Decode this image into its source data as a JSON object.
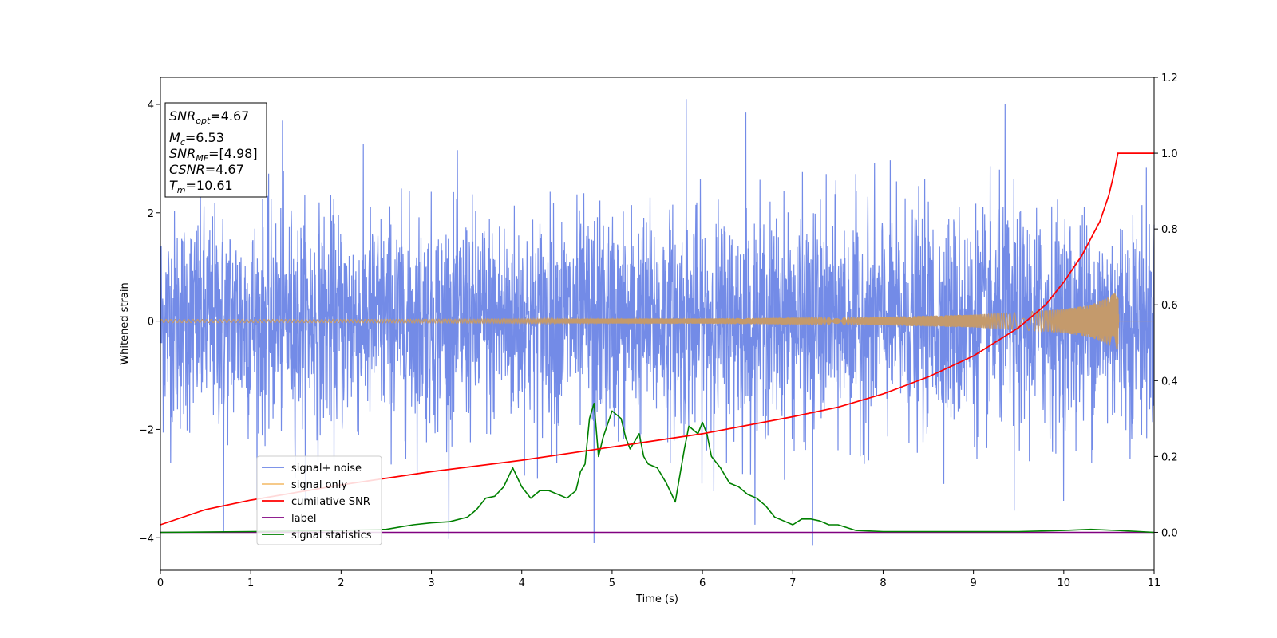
{
  "chart_data": {
    "type": "line",
    "xlabel": "Time (s)",
    "ylabel_left": "Whitened strain",
    "ylabel_right": "",
    "xlim": [
      0,
      11
    ],
    "ylim_left": [
      -4.6,
      4.5
    ],
    "ylim_right": [
      -0.1,
      1.2
    ],
    "x_ticks": [
      0,
      1,
      2,
      3,
      4,
      5,
      6,
      7,
      8,
      9,
      10,
      11
    ],
    "y_ticks_left": [
      -4,
      -2,
      0,
      2,
      4
    ],
    "y_ticks_left_labels": [
      "−4",
      "−2",
      "0",
      "2",
      "4"
    ],
    "y_ticks_right": [
      0.0,
      0.2,
      0.4,
      0.6,
      0.8,
      1.0,
      1.2
    ],
    "y_ticks_right_labels": [
      "0.0",
      "0.2",
      "0.4",
      "0.6",
      "0.8",
      "1.0",
      "1.2"
    ],
    "grid": false,
    "legend_position": "lower-left",
    "info_box": {
      "snr_opt_label": "SNR",
      "snr_opt_sub": "opt",
      "snr_opt_value": "=4.67",
      "mc_label": "M",
      "mc_sub": "c",
      "mc_value": "=6.53",
      "snr_mf_label": "SNR",
      "snr_mf_sub": "MF",
      "snr_mf_value": "=[4.98]",
      "csnr_label": "CSNR",
      "csnr_value": "=4.67",
      "tm_label": "T",
      "tm_sub": "m",
      "tm_value": "=10.61"
    },
    "series": [
      {
        "name": "signal+ noise",
        "axis": "left",
        "color": "#6b85e6",
        "description": "whitened noise samples, approx. Gaussian, std ~1, spikes up to ~4.1 and down to ~-4.2",
        "extremes": [
          {
            "x": 0.7,
            "y": -3.9
          },
          {
            "x": 1.35,
            "y": 3.7
          },
          {
            "x": 4.8,
            "y": -4.1
          },
          {
            "x": 5.82,
            "y": 4.1
          },
          {
            "x": 6.48,
            "y": 3.85
          },
          {
            "x": 7.22,
            "y": -4.15
          },
          {
            "x": 9.35,
            "y": 4.0
          },
          {
            "x": 9.45,
            "y": -3.5
          }
        ]
      },
      {
        "name": "signal only",
        "axis": "left",
        "color": "#f5c27a",
        "description": "chirp waveform with growing amplitude, ends at Tm=10.61",
        "envelope_x": [
          0,
          2,
          4,
          6,
          8,
          9,
          9.5,
          10,
          10.3,
          10.5,
          10.6,
          10.61,
          11
        ],
        "envelope_y": [
          0.03,
          0.03,
          0.04,
          0.05,
          0.08,
          0.12,
          0.16,
          0.22,
          0.3,
          0.45,
          0.55,
          0.0,
          0.0
        ]
      },
      {
        "name": "cumilative SNR",
        "axis": "right",
        "color": "#ff0000",
        "x": [
          0,
          0.5,
          1,
          2,
          3,
          4,
          5,
          6,
          7,
          7.5,
          8,
          8.5,
          9,
          9.5,
          9.8,
          10,
          10.2,
          10.4,
          10.5,
          10.55,
          10.6,
          10.61,
          11
        ],
        "y": [
          0.02,
          0.06,
          0.085,
          0.125,
          0.16,
          0.19,
          0.225,
          0.26,
          0.305,
          0.33,
          0.365,
          0.41,
          0.465,
          0.54,
          0.6,
          0.66,
          0.73,
          0.82,
          0.89,
          0.94,
          1.0,
          1.0,
          1.0
        ]
      },
      {
        "name": "label",
        "axis": "right",
        "color": "#800080",
        "x": [
          0,
          11
        ],
        "y": [
          0.0,
          0.0
        ]
      },
      {
        "name": "signal statistics",
        "axis": "right",
        "color": "#008000",
        "x": [
          0,
          1,
          2,
          2.5,
          2.8,
          3.0,
          3.2,
          3.4,
          3.5,
          3.6,
          3.7,
          3.8,
          3.9,
          4.0,
          4.1,
          4.2,
          4.3,
          4.4,
          4.5,
          4.6,
          4.65,
          4.7,
          4.75,
          4.8,
          4.85,
          4.9,
          5.0,
          5.1,
          5.15,
          5.2,
          5.3,
          5.35,
          5.4,
          5.5,
          5.6,
          5.7,
          5.8,
          5.85,
          5.9,
          5.95,
          6.0,
          6.05,
          6.1,
          6.2,
          6.3,
          6.4,
          6.5,
          6.6,
          6.7,
          6.8,
          6.9,
          7.0,
          7.1,
          7.2,
          7.3,
          7.4,
          7.5,
          7.7,
          8.0,
          9.0,
          9.5,
          10.0,
          10.3,
          10.6,
          11
        ],
        "y": [
          0.0,
          0.002,
          0.005,
          0.008,
          0.02,
          0.025,
          0.028,
          0.04,
          0.06,
          0.09,
          0.095,
          0.12,
          0.17,
          0.12,
          0.09,
          0.11,
          0.11,
          0.1,
          0.09,
          0.11,
          0.16,
          0.18,
          0.3,
          0.34,
          0.2,
          0.25,
          0.32,
          0.3,
          0.25,
          0.22,
          0.26,
          0.2,
          0.18,
          0.17,
          0.13,
          0.08,
          0.22,
          0.28,
          0.27,
          0.26,
          0.29,
          0.26,
          0.2,
          0.17,
          0.13,
          0.12,
          0.1,
          0.09,
          0.07,
          0.04,
          0.03,
          0.02,
          0.035,
          0.035,
          0.03,
          0.02,
          0.02,
          0.005,
          0.002,
          0.002,
          0.002,
          0.005,
          0.008,
          0.005,
          0.0
        ]
      }
    ]
  }
}
